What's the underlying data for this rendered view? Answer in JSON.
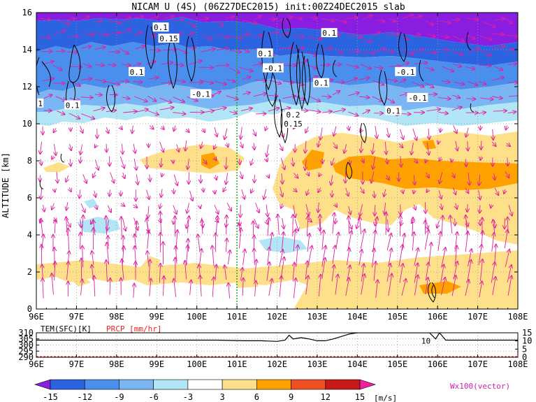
{
  "title": "NICAM U (4S) (06Z27DEC2015) init:00Z24DEC2015 slab",
  "colors": {
    "shading": [
      "#8a1ee0",
      "#2b63e0",
      "#4a8eee",
      "#7ab6f4",
      "#b2e6f6",
      "#ffffff",
      "#ffe08a",
      "#ffa200",
      "#f05020",
      "#c81818",
      "#f020a0"
    ],
    "contour": "#000000",
    "vector": "#e020a0",
    "marker": "#22aa22",
    "surface_temp": "#000000",
    "precip": "#ee2222"
  },
  "chart_data": [
    {
      "type": "heatmap",
      "variable": "U",
      "xlabel": "",
      "ylabel": "ALTITUDE [km]",
      "x_ticks": [
        "96E",
        "97E",
        "98E",
        "99E",
        "100E",
        "101E",
        "102E",
        "103E",
        "104E",
        "105E",
        "106E",
        "107E",
        "108E"
      ],
      "xlim": [
        96,
        108
      ],
      "y_ticks": [
        0,
        2,
        4,
        6,
        8,
        10,
        12,
        14,
        16
      ],
      "ylim": [
        0,
        16
      ],
      "grid": true,
      "vertical_marker_lon": 101,
      "contour_labels": [
        {
          "text": "0.1",
          "lon": 99.1,
          "alt": 15.2
        },
        {
          "text": "0.15",
          "lon": 99.3,
          "alt": 14.6
        },
        {
          "text": "0.1",
          "lon": 98.5,
          "alt": 12.8
        },
        {
          "text": "-0.1",
          "lon": 100.1,
          "alt": 11.6
        },
        {
          "text": "1",
          "lon": 96.1,
          "alt": 11.1
        },
        {
          "text": "0.1",
          "lon": 96.9,
          "alt": 11.0
        },
        {
          "text": "0.1",
          "lon": 101.7,
          "alt": 13.8
        },
        {
          "text": "-0.1",
          "lon": 101.9,
          "alt": 13.0
        },
        {
          "text": "0.1",
          "lon": 103.3,
          "alt": 14.9
        },
        {
          "text": "0.1",
          "lon": 103.1,
          "alt": 12.2
        },
        {
          "text": "0.2",
          "lon": 102.4,
          "alt": 10.5
        },
        {
          "text": "0.15",
          "lon": 102.4,
          "alt": 10.0
        },
        {
          "text": "-0.1",
          "lon": 105.2,
          "alt": 12.8
        },
        {
          "text": "-0.1",
          "lon": 105.5,
          "alt": 11.4
        },
        {
          "text": "0.1",
          "lon": 104.9,
          "alt": 10.7
        }
      ]
    },
    {
      "type": "line",
      "x_ticks": [
        "96E",
        "97E",
        "98E",
        "99E",
        "100E",
        "101E",
        "102E",
        "103E",
        "104E",
        "105E",
        "106E",
        "107E",
        "108E"
      ],
      "xlim": [
        96,
        108
      ],
      "left_label": "TEM(SFC)[K]",
      "right_label": "PRCP [mm/hr]",
      "left_ticks": [
        310,
        305,
        300,
        295,
        290
      ],
      "left_ylim": [
        290,
        310
      ],
      "right_ticks": [
        15,
        10,
        5,
        0
      ],
      "right_ylim": [
        0,
        15
      ],
      "series": [
        {
          "axis": "left",
          "x": [
            96,
            97,
            98,
            99,
            100,
            100.5,
            101.2,
            101.6,
            102.0,
            102.2,
            102.3,
            102.4,
            102.5,
            102.6,
            102.7,
            102.8,
            103.0,
            103.2,
            103.4,
            103.6,
            103.8,
            104.0,
            105,
            105.8,
            105.95,
            106.05,
            106.2,
            107,
            108
          ],
          "y": [
            304,
            304,
            304,
            304,
            304,
            304,
            303.5,
            303.5,
            303,
            304,
            308,
            305,
            305.5,
            306,
            305.5,
            305,
            303.5,
            303.5,
            305,
            307,
            309,
            310,
            310,
            310,
            305,
            310,
            304,
            304,
            304
          ]
        },
        {
          "axis": "right",
          "x": [
            96,
            108
          ],
          "y": [
            0,
            0
          ]
        }
      ],
      "annotations": [
        {
          "text": "10",
          "lon": 105.85,
          "value": 10
        }
      ]
    },
    {
      "type": "colorbar",
      "values": [
        "-15",
        "-12",
        "-9",
        "-6",
        "-3",
        "3",
        "6",
        "9",
        "12",
        "15"
      ],
      "unit": "[m/s]",
      "note": "Wx100(vector)"
    }
  ]
}
